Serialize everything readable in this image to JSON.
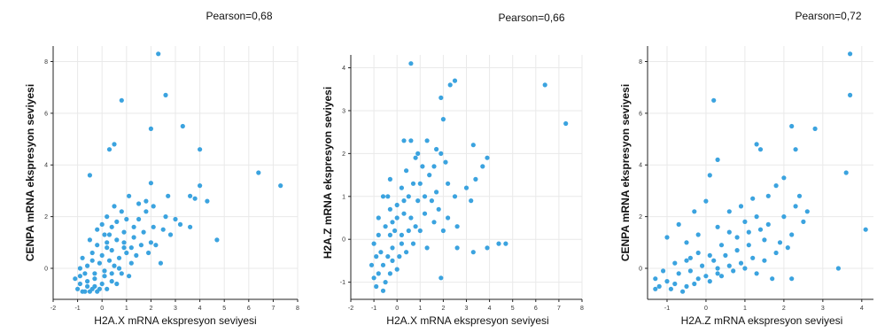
{
  "chart_data": [
    {
      "type": "scatter",
      "annotation": "Pearson=0,68",
      "xlabel": "H2A.X mRNA ekspresyon seviyesi",
      "ylabel": "CENPA mRNA ekspresyon seviyesi",
      "xlim": [
        -2,
        8
      ],
      "ylim": [
        -1.2,
        8.6
      ],
      "xticks": [
        "-2",
        "-1",
        "0",
        "1",
        "2",
        "3",
        "4",
        "5",
        "6",
        "7",
        "8"
      ],
      "yticks": [
        "0",
        "2",
        "4",
        "6",
        "8"
      ],
      "grid": true,
      "color": "#3ba3df",
      "points": [
        [
          2.3,
          8.3
        ],
        [
          2.6,
          6.7
        ],
        [
          0.8,
          6.5
        ],
        [
          2.0,
          5.4
        ],
        [
          3.3,
          5.5
        ],
        [
          0.3,
          4.6
        ],
        [
          0.5,
          4.8
        ],
        [
          4.0,
          4.6
        ],
        [
          -0.5,
          3.6
        ],
        [
          6.4,
          3.7
        ],
        [
          7.3,
          3.2
        ],
        [
          4.0,
          3.2
        ],
        [
          2.0,
          3.3
        ],
        [
          2.7,
          2.8
        ],
        [
          3.6,
          2.8
        ],
        [
          3.8,
          2.7
        ],
        [
          4.3,
          2.6
        ],
        [
          4.7,
          1.1
        ],
        [
          3.2,
          1.7
        ],
        [
          3.6,
          1.6
        ],
        [
          2.5,
          1.5
        ],
        [
          2.8,
          1.3
        ],
        [
          2.1,
          1.6
        ],
        [
          1.8,
          2.2
        ],
        [
          1.5,
          2.5
        ],
        [
          1.1,
          2.8
        ],
        [
          0.8,
          2.2
        ],
        [
          0.5,
          2.4
        ],
        [
          0.6,
          1.8
        ],
        [
          0.3,
          1.3
        ],
        [
          0.9,
          1.4
        ],
        [
          1.3,
          1.2
        ],
        [
          1.6,
          0.9
        ],
        [
          2.2,
          0.9
        ],
        [
          2.4,
          0.2
        ],
        [
          1.9,
          0.6
        ],
        [
          1.2,
          0.2
        ],
        [
          0.9,
          0.8
        ],
        [
          0.7,
          0.4
        ],
        [
          0.4,
          0.7
        ],
        [
          0.2,
          1.0
        ],
        [
          0.0,
          0.5
        ],
        [
          -0.2,
          0.9
        ],
        [
          -0.4,
          0.3
        ],
        [
          -0.6,
          0.1
        ],
        [
          -0.8,
          0.4
        ],
        [
          -0.3,
          -0.2
        ],
        [
          0.1,
          -0.1
        ],
        [
          0.5,
          0.1
        ],
        [
          0.8,
          -0.2
        ],
        [
          1.1,
          -0.3
        ],
        [
          0.4,
          -0.5
        ],
        [
          0.0,
          -0.6
        ],
        [
          -0.3,
          -0.7
        ],
        [
          -0.6,
          -0.5
        ],
        [
          -0.9,
          -0.6
        ],
        [
          -1.0,
          -0.8
        ],
        [
          -0.8,
          -0.9
        ],
        [
          -0.5,
          -0.9
        ],
        [
          -0.2,
          -0.9
        ],
        [
          0.2,
          -0.8
        ],
        [
          -1.1,
          -0.4
        ],
        [
          -0.7,
          -0.2
        ],
        [
          -0.1,
          0.2
        ],
        [
          0.3,
          0.3
        ],
        [
          -0.4,
          0.6
        ],
        [
          0.6,
          -0.6
        ],
        [
          1.4,
          0.5
        ],
        [
          1.7,
          1.4
        ],
        [
          2.0,
          1.0
        ],
        [
          2.6,
          2.0
        ],
        [
          3.0,
          1.9
        ],
        [
          1.0,
          1.9
        ],
        [
          0.2,
          2.0
        ],
        [
          -0.2,
          1.5
        ],
        [
          0.0,
          1.7
        ],
        [
          -0.5,
          1.1
        ],
        [
          -0.9,
          0.0
        ],
        [
          -0.6,
          -0.7
        ],
        [
          -0.3,
          -0.4
        ],
        [
          0.1,
          -0.3
        ],
        [
          0.4,
          -0.2
        ],
        [
          0.7,
          0.0
        ],
        [
          1.0,
          0.6
        ],
        [
          1.3,
          1.6
        ],
        [
          1.5,
          1.9
        ],
        [
          0.2,
          0.8
        ],
        [
          -0.1,
          -0.8
        ],
        [
          -0.4,
          -0.8
        ],
        [
          -0.7,
          -0.9
        ],
        [
          -0.9,
          -0.3
        ],
        [
          0.6,
          1.1
        ],
        [
          0.9,
          1.0
        ],
        [
          1.2,
          0.8
        ],
        [
          1.8,
          2.6
        ],
        [
          2.1,
          2.4
        ],
        [
          0.4,
          1.6
        ],
        [
          0.1,
          1.3
        ]
      ]
    },
    {
      "type": "scatter",
      "annotation": "Pearson=0,66",
      "xlabel": "H2A.X mRNA ekspresyon seviyesi",
      "ylabel": "H2A.Z mRNA ekspresyon seviyesi",
      "xlim": [
        -2,
        8
      ],
      "ylim": [
        -1.4,
        4.3
      ],
      "xticks": [
        "-2",
        "-1",
        "0",
        "1",
        "2",
        "3",
        "4",
        "5",
        "6",
        "7",
        "8"
      ],
      "yticks": [
        "-1",
        "0",
        "1",
        "2",
        "3",
        "4"
      ],
      "grid": true,
      "color": "#3ba3df",
      "points": [
        [
          0.6,
          4.1
        ],
        [
          2.5,
          3.7
        ],
        [
          2.3,
          3.6
        ],
        [
          6.4,
          3.6
        ],
        [
          7.3,
          2.7
        ],
        [
          1.9,
          3.3
        ],
        [
          2.0,
          2.8
        ],
        [
          0.3,
          2.3
        ],
        [
          0.6,
          2.3
        ],
        [
          1.3,
          2.3
        ],
        [
          1.7,
          2.1
        ],
        [
          1.9,
          2.0
        ],
        [
          3.3,
          2.2
        ],
        [
          3.9,
          1.9
        ],
        [
          3.7,
          1.7
        ],
        [
          3.4,
          1.4
        ],
        [
          3.2,
          0.9
        ],
        [
          3.0,
          1.2
        ],
        [
          2.5,
          1.0
        ],
        [
          2.2,
          1.3
        ],
        [
          1.7,
          1.1
        ],
        [
          1.4,
          1.5
        ],
        [
          1.1,
          1.7
        ],
        [
          0.8,
          1.9
        ],
        [
          0.4,
          1.6
        ],
        [
          0.2,
          1.2
        ],
        [
          -0.3,
          1.4
        ],
        [
          -0.6,
          1.0
        ],
        [
          0.0,
          0.8
        ],
        [
          0.5,
          1.0
        ],
        [
          0.9,
          0.9
        ],
        [
          1.2,
          0.6
        ],
        [
          1.6,
          0.4
        ],
        [
          2.0,
          0.2
        ],
        [
          2.6,
          0.3
        ],
        [
          4.4,
          -0.1
        ],
        [
          4.7,
          -0.1
        ],
        [
          3.9,
          -0.2
        ],
        [
          3.3,
          -0.3
        ],
        [
          2.6,
          -0.2
        ],
        [
          0.2,
          0.1
        ],
        [
          -0.2,
          0.4
        ],
        [
          -0.5,
          0.3
        ],
        [
          -0.8,
          0.1
        ],
        [
          -1.0,
          -0.1
        ],
        [
          -1.1,
          -0.6
        ],
        [
          -0.8,
          -0.8
        ],
        [
          -0.5,
          -1.0
        ],
        [
          -0.9,
          -1.1
        ],
        [
          -0.2,
          -0.5
        ],
        [
          0.1,
          -0.4
        ],
        [
          0.4,
          -0.3
        ],
        [
          0.7,
          -0.1
        ],
        [
          1.0,
          0.2
        ],
        [
          1.3,
          -0.2
        ],
        [
          -0.3,
          0.7
        ],
        [
          0.0,
          0.5
        ],
        [
          0.3,
          0.6
        ],
        [
          0.6,
          0.5
        ],
        [
          -0.7,
          -0.3
        ],
        [
          -0.4,
          -0.4
        ],
        [
          -1.0,
          -0.9
        ],
        [
          -0.6,
          -1.2
        ],
        [
          -0.3,
          -0.8
        ],
        [
          0.0,
          -0.7
        ],
        [
          1.0,
          1.3
        ],
        [
          1.5,
          0.9
        ],
        [
          1.8,
          0.7
        ],
        [
          2.2,
          0.5
        ],
        [
          0.9,
          2.0
        ],
        [
          1.2,
          1.0
        ],
        [
          -0.1,
          0.2
        ],
        [
          -0.8,
          0.5
        ],
        [
          -0.4,
          1.0
        ],
        [
          0.2,
          -0.1
        ],
        [
          0.5,
          0.2
        ],
        [
          0.8,
          0.3
        ],
        [
          -0.2,
          -0.2
        ],
        [
          -0.6,
          -0.6
        ],
        [
          1.9,
          -0.9
        ],
        [
          2.1,
          1.8
        ],
        [
          1.6,
          1.7
        ],
        [
          0.7,
          1.3
        ],
        [
          0.3,
          0.9
        ],
        [
          -0.9,
          -0.4
        ],
        [
          -0.3,
          0.1
        ]
      ]
    },
    {
      "type": "scatter",
      "annotation": "Pearson=0,72",
      "xlabel": "H2A.Z mRNA ekspresyon seviyesi",
      "ylabel": "CENPA mRNA ekspresyon seviyesi",
      "xlim": [
        -1.5,
        4.3
      ],
      "ylim": [
        -1.2,
        8.6
      ],
      "xticks": [
        "-1",
        "0",
        "1",
        "2",
        "3",
        "4"
      ],
      "yticks": [
        "0",
        "2",
        "4",
        "6",
        "8"
      ],
      "grid": true,
      "color": "#3ba3df",
      "points": [
        [
          3.7,
          8.3
        ],
        [
          3.7,
          6.7
        ],
        [
          0.2,
          6.5
        ],
        [
          2.2,
          5.5
        ],
        [
          2.8,
          5.4
        ],
        [
          1.3,
          4.8
        ],
        [
          1.4,
          4.6
        ],
        [
          2.3,
          4.6
        ],
        [
          0.3,
          4.2
        ],
        [
          0.1,
          3.6
        ],
        [
          3.6,
          3.7
        ],
        [
          4.1,
          1.5
        ],
        [
          3.4,
          0.0
        ],
        [
          2.0,
          3.5
        ],
        [
          1.8,
          3.2
        ],
        [
          1.6,
          2.8
        ],
        [
          1.2,
          2.7
        ],
        [
          0.9,
          2.4
        ],
        [
          0.6,
          2.2
        ],
        [
          0.0,
          2.6
        ],
        [
          -0.3,
          2.2
        ],
        [
          -0.7,
          1.7
        ],
        [
          -1.0,
          1.2
        ],
        [
          -0.5,
          1.0
        ],
        [
          -0.2,
          1.3
        ],
        [
          0.3,
          1.6
        ],
        [
          0.6,
          1.4
        ],
        [
          1.0,
          1.8
        ],
        [
          1.3,
          2.0
        ],
        [
          1.6,
          1.7
        ],
        [
          2.0,
          2.0
        ],
        [
          2.3,
          2.4
        ],
        [
          2.5,
          1.8
        ],
        [
          2.2,
          1.3
        ],
        [
          1.9,
          1.0
        ],
        [
          1.5,
          1.1
        ],
        [
          1.1,
          0.9
        ],
        [
          0.8,
          0.7
        ],
        [
          0.4,
          0.9
        ],
        [
          0.1,
          0.5
        ],
        [
          -0.2,
          0.6
        ],
        [
          -0.5,
          0.3
        ],
        [
          -0.8,
          0.2
        ],
        [
          -1.1,
          -0.1
        ],
        [
          -1.3,
          -0.4
        ],
        [
          -1.2,
          -0.7
        ],
        [
          -0.9,
          -0.8
        ],
        [
          -0.6,
          -0.9
        ],
        [
          -0.3,
          -0.6
        ],
        [
          0.0,
          -0.3
        ],
        [
          0.3,
          -0.2
        ],
        [
          0.6,
          0.1
        ],
        [
          0.9,
          0.2
        ],
        [
          1.2,
          0.4
        ],
        [
          1.5,
          0.3
        ],
        [
          1.8,
          0.6
        ],
        [
          2.1,
          0.8
        ],
        [
          -1.0,
          -0.5
        ],
        [
          -0.7,
          -0.2
        ],
        [
          -0.4,
          -0.1
        ],
        [
          -0.1,
          0.1
        ],
        [
          0.2,
          0.3
        ],
        [
          0.5,
          0.5
        ],
        [
          -0.8,
          -0.6
        ],
        [
          -0.5,
          -0.7
        ],
        [
          -0.2,
          -0.4
        ],
        [
          0.1,
          -0.5
        ],
        [
          0.4,
          -0.3
        ],
        [
          0.7,
          -0.1
        ],
        [
          1.0,
          0.0
        ],
        [
          1.7,
          -0.4
        ],
        [
          2.2,
          -0.4
        ],
        [
          1.1,
          1.4
        ],
        [
          0.8,
          1.2
        ],
        [
          2.6,
          2.2
        ],
        [
          2.4,
          2.8
        ],
        [
          1.4,
          1.5
        ],
        [
          -1.3,
          -0.8
        ],
        [
          -0.4,
          0.4
        ],
        [
          0.3,
          0.0
        ],
        [
          1.3,
          -0.2
        ]
      ]
    }
  ]
}
